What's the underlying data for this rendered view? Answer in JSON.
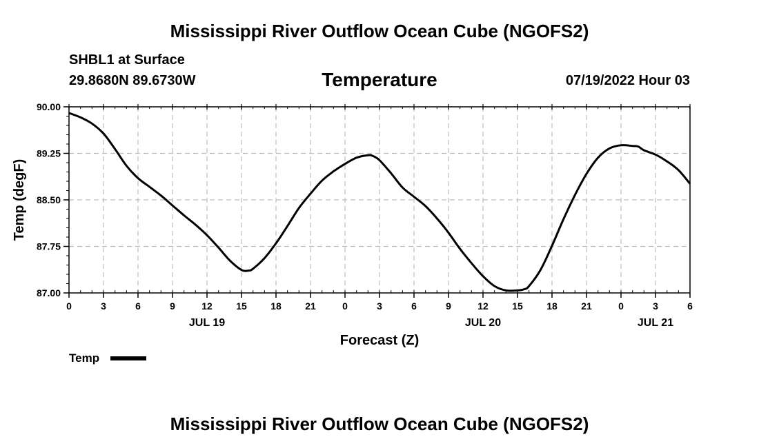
{
  "page": {
    "main_title": "Mississippi River Outflow Ocean Cube (NGOFS2)",
    "station_label": "SHBL1 at Surface",
    "coordinates": "29.8680N  89.6730W",
    "plot_title": "Temperature",
    "timestamp": "07/19/2022 Hour 03",
    "footer_title": "Mississippi River Outflow Ocean Cube (NGOFS2)"
  },
  "chart_data": {
    "type": "line",
    "title": "Temperature",
    "xlabel": "Forecast (Z)",
    "ylabel": "Temp (degF)",
    "ylim": [
      87.0,
      90.0
    ],
    "yticks": [
      "87.00",
      "87.75",
      "88.50",
      "89.25",
      "90.00"
    ],
    "xlim": [
      0,
      54
    ],
    "xtick_step": 3,
    "xtick_labels": [
      "0",
      "3",
      "6",
      "9",
      "12",
      "15",
      "18",
      "21",
      "0",
      "3",
      "6",
      "9",
      "12",
      "15",
      "18",
      "21",
      "0",
      "3",
      "6"
    ],
    "day_labels": [
      {
        "label": "JUL 19",
        "hour": 12
      },
      {
        "label": "JUL 20",
        "hour": 36
      },
      {
        "label": "JUL 21",
        "hour": 51
      }
    ],
    "grid": true,
    "legend": {
      "label": "Temp",
      "placement": "bottom-left"
    },
    "series": [
      {
        "name": "Temp",
        "color": "#000000",
        "x": [
          0,
          1,
          2,
          3,
          4,
          5,
          6,
          7,
          8,
          9,
          10,
          11,
          12,
          13,
          14,
          15,
          15.6,
          16,
          17,
          18,
          19,
          20,
          21,
          22,
          23,
          24,
          25,
          26,
          26.4,
          27,
          28,
          29,
          30,
          31,
          32,
          33,
          34,
          35,
          36,
          37,
          38,
          39,
          39.6,
          40,
          41,
          42,
          43,
          44,
          45,
          46,
          47,
          48,
          49,
          49.5,
          50,
          51,
          52,
          53,
          54
        ],
        "values": [
          89.9,
          89.83,
          89.73,
          89.57,
          89.32,
          89.05,
          88.85,
          88.71,
          88.57,
          88.41,
          88.25,
          88.1,
          87.93,
          87.73,
          87.52,
          87.37,
          87.36,
          87.39,
          87.56,
          87.8,
          88.08,
          88.37,
          88.6,
          88.81,
          88.96,
          89.08,
          89.18,
          89.22,
          89.21,
          89.14,
          88.93,
          88.7,
          88.55,
          88.4,
          88.2,
          87.97,
          87.71,
          87.48,
          87.27,
          87.11,
          87.04,
          87.04,
          87.06,
          87.11,
          87.37,
          87.76,
          88.19,
          88.58,
          88.92,
          89.18,
          89.33,
          89.38,
          89.37,
          89.36,
          89.3,
          89.23,
          89.12,
          88.98,
          88.76
        ]
      }
    ]
  }
}
